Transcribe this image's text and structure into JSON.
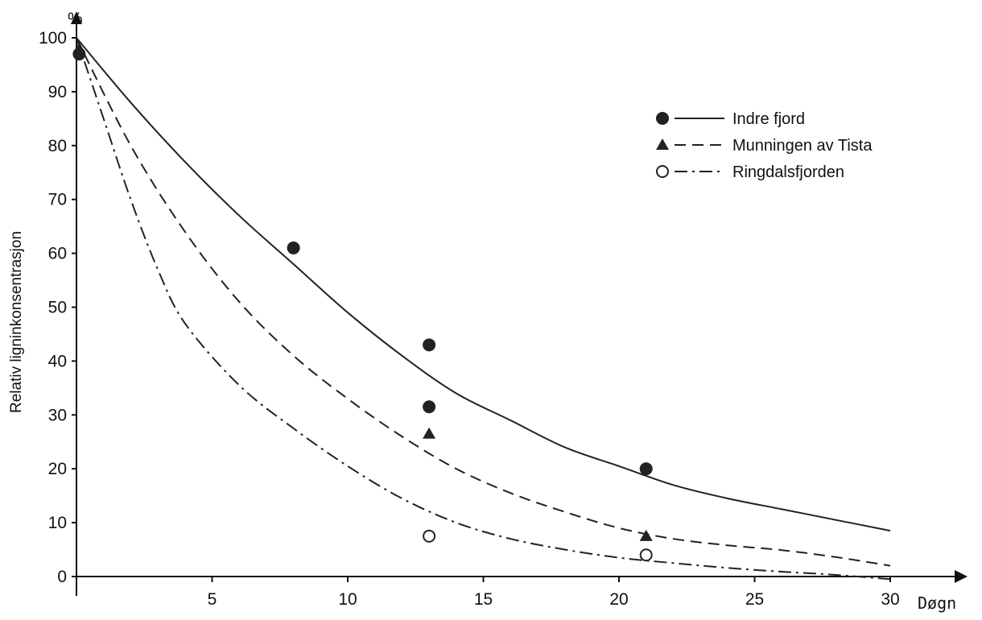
{
  "chart_data": {
    "type": "scatter",
    "ylabel": "Relativ ligninkonsentrasjon",
    "yunit": "%",
    "xlabel": "Døgn",
    "xlim": [
      0,
      30
    ],
    "ylim": [
      0,
      100
    ],
    "x_ticks": [
      5,
      10,
      15,
      20,
      25,
      30
    ],
    "y_ticks": [
      0,
      10,
      20,
      30,
      40,
      50,
      60,
      70,
      80,
      90,
      100
    ],
    "grid": false,
    "legend_position": "top-right",
    "series": [
      {
        "name": "Indre fjord",
        "marker": "filled-circle",
        "line_style": "solid",
        "points": [
          [
            0.1,
            97
          ],
          [
            8,
            61
          ],
          [
            13,
            43
          ],
          [
            13,
            31.5
          ],
          [
            21,
            20
          ]
        ],
        "curve": [
          [
            0,
            100
          ],
          [
            2,
            88
          ],
          [
            4,
            77
          ],
          [
            6,
            67
          ],
          [
            8,
            58
          ],
          [
            10,
            49
          ],
          [
            12,
            41
          ],
          [
            14,
            34
          ],
          [
            16,
            29
          ],
          [
            18,
            24
          ],
          [
            20,
            20.5
          ],
          [
            22,
            17
          ],
          [
            24,
            14.5
          ],
          [
            26,
            12.5
          ],
          [
            28,
            10.5
          ],
          [
            30,
            8.5
          ]
        ]
      },
      {
        "name": "Munningen av Tista",
        "marker": "filled-triangle",
        "line_style": "dashed",
        "points": [
          [
            0.1,
            98
          ],
          [
            13,
            26.5
          ],
          [
            21,
            7.5
          ]
        ],
        "curve": [
          [
            0,
            100
          ],
          [
            2,
            80
          ],
          [
            4,
            64
          ],
          [
            6,
            51
          ],
          [
            8,
            41
          ],
          [
            10,
            33
          ],
          [
            12,
            26
          ],
          [
            14,
            20
          ],
          [
            16,
            15.5
          ],
          [
            18,
            12
          ],
          [
            20,
            9
          ],
          [
            22,
            7
          ],
          [
            24,
            5.8
          ],
          [
            26,
            4.9
          ],
          [
            28,
            3.6
          ],
          [
            30,
            2
          ]
        ]
      },
      {
        "name": "Ringdalsfjorden",
        "marker": "open-circle",
        "line_style": "dash-dot",
        "points": [
          [
            13,
            7.5
          ],
          [
            21,
            4
          ]
        ],
        "curve": [
          [
            0,
            100
          ],
          [
            1,
            85
          ],
          [
            2,
            70
          ],
          [
            3,
            57
          ],
          [
            4,
            47
          ],
          [
            6,
            35.5
          ],
          [
            8,
            27.5
          ],
          [
            10,
            20.5
          ],
          [
            12,
            14.5
          ],
          [
            14,
            10
          ],
          [
            16,
            7
          ],
          [
            18,
            5
          ],
          [
            20,
            3.5
          ],
          [
            22,
            2.5
          ],
          [
            24,
            1.6
          ],
          [
            26,
            0.9
          ],
          [
            28,
            0.3
          ],
          [
            30,
            -0.5
          ]
        ]
      }
    ]
  }
}
